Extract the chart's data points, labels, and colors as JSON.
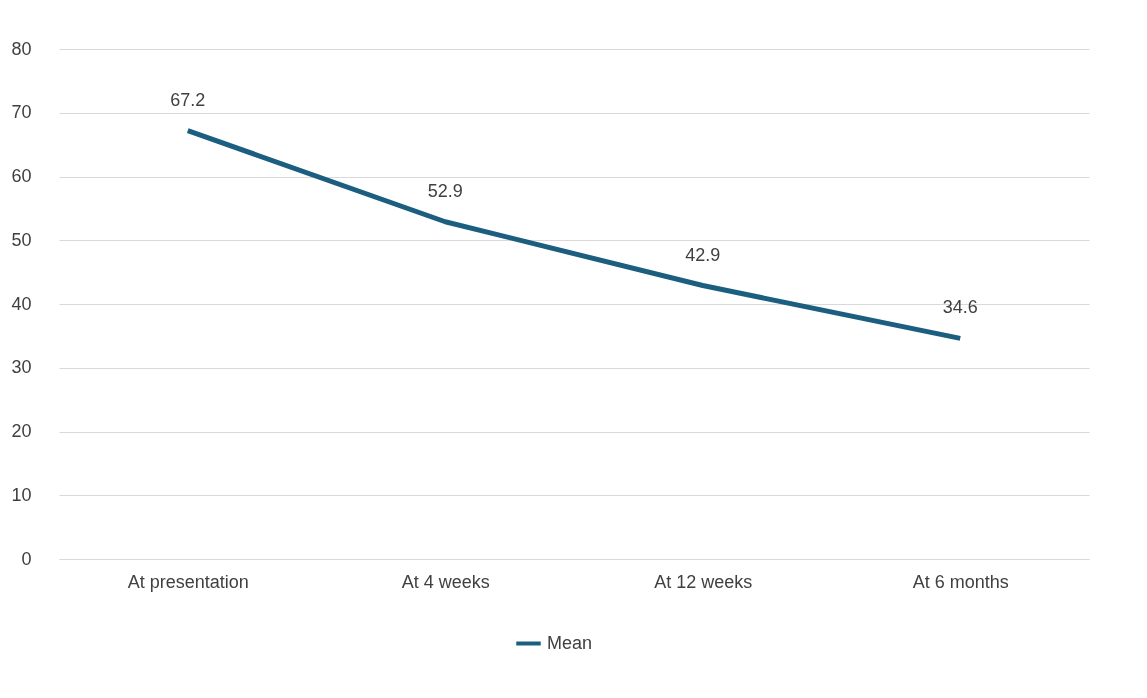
{
  "chart_data": {
    "type": "line",
    "categories": [
      "At presentation",
      "At 4 weeks",
      "At 12 weeks",
      "At 6 months"
    ],
    "series": [
      {
        "name": "Mean",
        "color": "#1b5e80",
        "values": [
          67.2,
          52.9,
          42.9,
          34.6
        ]
      }
    ],
    "ylim": [
      0,
      80
    ],
    "yticks": [
      0,
      10,
      20,
      30,
      40,
      50,
      60,
      70,
      80
    ],
    "grid": "y",
    "legend": "bottom",
    "data_labels": true,
    "marker": "none",
    "line_style": "solid"
  }
}
